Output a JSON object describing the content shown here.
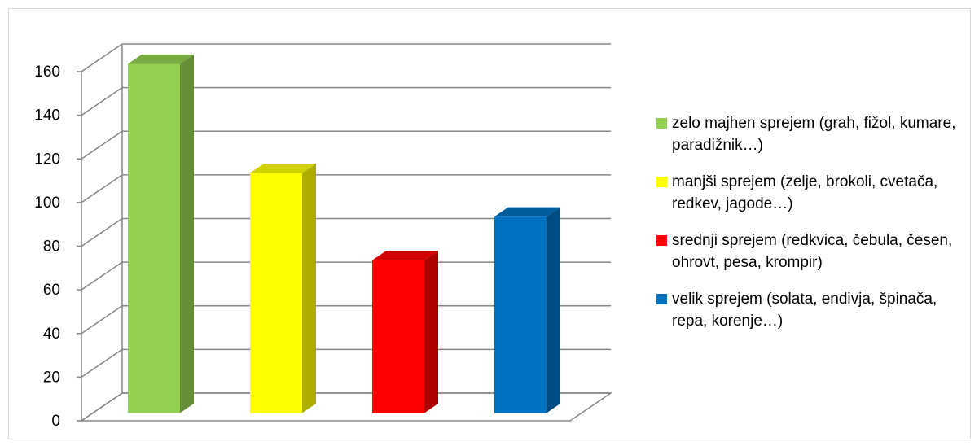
{
  "chart_data": {
    "type": "bar3d",
    "series": [
      {
        "name": "zelo majhen sprejem (grah, fižol, kumare, paradižnik…)",
        "color": "#92d050",
        "values": [
          160
        ]
      },
      {
        "name": "manjši sprejem (zelje, brokoli, cvetača, redkev, jagode…)",
        "color": "#ffff00",
        "values": [
          110
        ]
      },
      {
        "name": "srednji sprejem (redkvica, čebula, česen, ohrovt, pesa, krompir)",
        "color": "#ff0000",
        "values": [
          70
        ]
      },
      {
        "name": "velik sprejem (solata, endivja, špinača, repa, korenje…)",
        "color": "#0070c0",
        "values": [
          90
        ]
      }
    ],
    "ylim": [
      0,
      160
    ],
    "yticks": [
      0,
      20,
      40,
      60,
      80,
      100,
      120,
      140,
      160
    ],
    "grid": true,
    "legend": "right"
  }
}
